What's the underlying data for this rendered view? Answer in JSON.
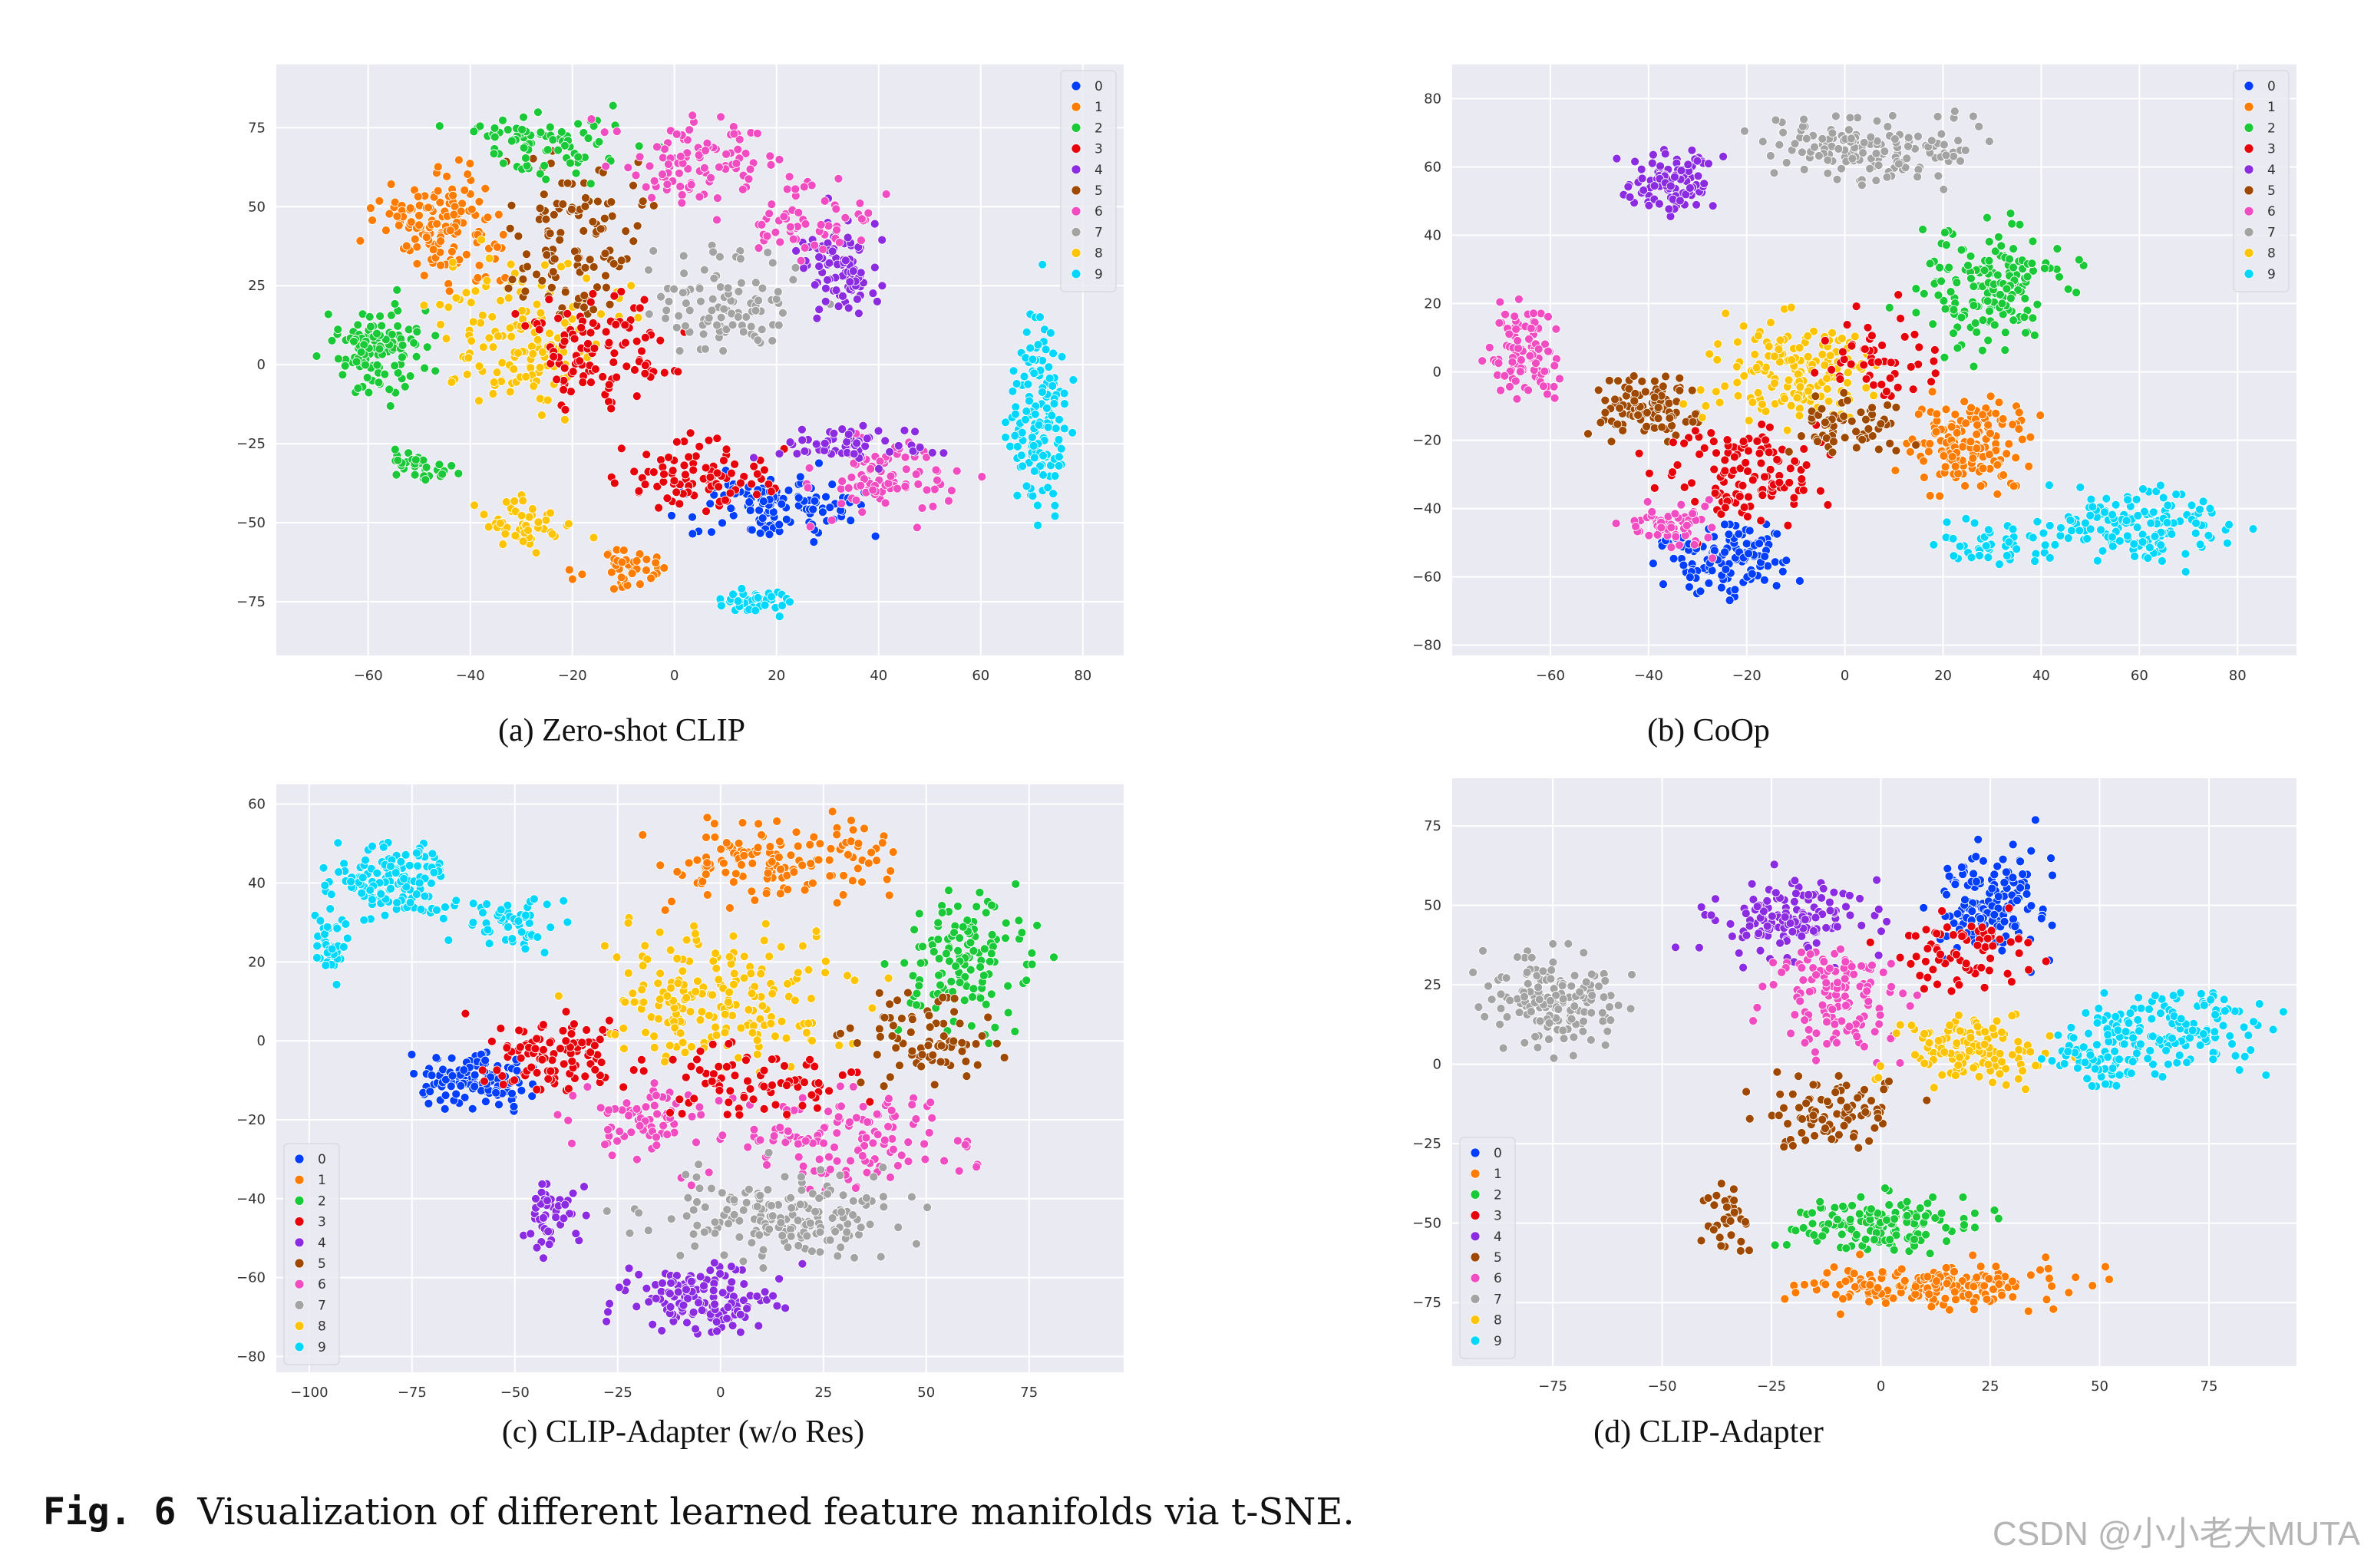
{
  "figure": {
    "label": "Fig. 6",
    "caption": "Visualization of different learned feature manifolds via t-SNE."
  },
  "watermark": "CSDN @小小老大MUTA",
  "colors": {
    "0": "#023eff",
    "1": "#ff7c00",
    "2": "#1ac938",
    "3": "#e8000b",
    "4": "#8b2be2",
    "5": "#9f4800",
    "6": "#f14cc1",
    "7": "#a3a3a3",
    "8": "#ffc400",
    "9": "#00d7ff"
  },
  "chart_data": [
    {
      "type": "scatter",
      "caption": "(a) Zero-shot CLIP",
      "legend_labels": [
        "0",
        "1",
        "2",
        "3",
        "4",
        "5",
        "6",
        "7",
        "8",
        "9"
      ],
      "legend_position": "top-right",
      "xlim": [
        -78,
        88
      ],
      "ylim": [
        -92,
        95
      ],
      "xticks": [
        -60,
        -40,
        -20,
        0,
        20,
        40,
        60,
        80
      ],
      "yticks": [
        -75,
        -50,
        -25,
        0,
        25,
        50,
        75
      ],
      "grid": true,
      "clusters": [
        {
          "label": 2,
          "cx": -58,
          "cy": 5,
          "sx": 8,
          "sy": 12,
          "n": 120
        },
        {
          "label": 1,
          "cx": -45,
          "cy": 45,
          "sx": 10,
          "sy": 15,
          "n": 140
        },
        {
          "label": 8,
          "cx": -30,
          "cy": 10,
          "sx": 14,
          "sy": 20,
          "n": 150
        },
        {
          "label": 5,
          "cx": -20,
          "cy": 40,
          "sx": 12,
          "sy": 20,
          "n": 120
        },
        {
          "label": 2,
          "cx": -25,
          "cy": 70,
          "sx": 15,
          "sy": 10,
          "n": 80
        },
        {
          "label": 3,
          "cx": -15,
          "cy": 5,
          "sx": 12,
          "sy": 15,
          "n": 110
        },
        {
          "label": 6,
          "cx": 5,
          "cy": 65,
          "sx": 12,
          "sy": 12,
          "n": 100
        },
        {
          "label": 7,
          "cx": 10,
          "cy": 20,
          "sx": 12,
          "sy": 15,
          "n": 100
        },
        {
          "label": 4,
          "cx": 33,
          "cy": 30,
          "sx": 6,
          "sy": 14,
          "n": 90
        },
        {
          "label": 6,
          "cx": 25,
          "cy": 45,
          "sx": 10,
          "sy": 10,
          "n": 60
        },
        {
          "label": 0,
          "cx": 20,
          "cy": -45,
          "sx": 14,
          "sy": 8,
          "n": 120
        },
        {
          "label": 3,
          "cx": 5,
          "cy": -35,
          "sx": 12,
          "sy": 10,
          "n": 90
        },
        {
          "label": 6,
          "cx": 40,
          "cy": -35,
          "sx": 12,
          "sy": 10,
          "n": 90
        },
        {
          "label": 4,
          "cx": 35,
          "cy": -25,
          "sx": 12,
          "sy": 6,
          "n": 60
        },
        {
          "label": 9,
          "cx": 72,
          "cy": -15,
          "sx": 5,
          "sy": 25,
          "n": 140
        },
        {
          "label": 9,
          "cx": 15,
          "cy": -75,
          "sx": 6,
          "sy": 4,
          "n": 40
        },
        {
          "label": 1,
          "cx": -10,
          "cy": -65,
          "sx": 8,
          "sy": 6,
          "n": 40
        },
        {
          "label": 2,
          "cx": -50,
          "cy": -32,
          "sx": 6,
          "sy": 4,
          "n": 35
        },
        {
          "label": 8,
          "cx": -30,
          "cy": -50,
          "sx": 8,
          "sy": 6,
          "n": 50
        }
      ]
    },
    {
      "type": "scatter",
      "caption": "(b) CoOp",
      "legend_labels": [
        "0",
        "1",
        "2",
        "3",
        "4",
        "5",
        "6",
        "7",
        "8",
        "9"
      ],
      "legend_position": "top-right",
      "xlim": [
        -80,
        92
      ],
      "ylim": [
        -83,
        90
      ],
      "xticks": [
        -60,
        -40,
        -20,
        0,
        20,
        40,
        60,
        80
      ],
      "yticks": [
        -80,
        -60,
        -40,
        -20,
        0,
        20,
        40,
        60,
        80
      ],
      "grid": true,
      "clusters": [
        {
          "label": 4,
          "cx": -35,
          "cy": 55,
          "sx": 8,
          "sy": 8,
          "n": 100
        },
        {
          "label": 7,
          "cx": 5,
          "cy": 65,
          "sx": 18,
          "sy": 8,
          "n": 150
        },
        {
          "label": 2,
          "cx": 30,
          "cy": 25,
          "sx": 12,
          "sy": 15,
          "n": 160
        },
        {
          "label": 6,
          "cx": -65,
          "cy": 5,
          "sx": 6,
          "sy": 10,
          "n": 100
        },
        {
          "label": 5,
          "cx": -40,
          "cy": -10,
          "sx": 8,
          "sy": 8,
          "n": 100
        },
        {
          "label": 8,
          "cx": -10,
          "cy": 0,
          "sx": 15,
          "sy": 12,
          "n": 160
        },
        {
          "label": 1,
          "cx": 25,
          "cy": -20,
          "sx": 10,
          "sy": 12,
          "n": 150
        },
        {
          "label": 0,
          "cx": -25,
          "cy": -55,
          "sx": 10,
          "sy": 8,
          "n": 130
        },
        {
          "label": 3,
          "cx": -20,
          "cy": -30,
          "sx": 14,
          "sy": 12,
          "n": 120
        },
        {
          "label": 6,
          "cx": -35,
          "cy": -45,
          "sx": 8,
          "sy": 6,
          "n": 60
        },
        {
          "label": 9,
          "cx": 60,
          "cy": -45,
          "sx": 15,
          "sy": 8,
          "n": 150
        },
        {
          "label": 9,
          "cx": 30,
          "cy": -50,
          "sx": 10,
          "sy": 5,
          "n": 50
        },
        {
          "label": 5,
          "cx": 0,
          "cy": -15,
          "sx": 10,
          "sy": 8,
          "n": 60
        },
        {
          "label": 3,
          "cx": 5,
          "cy": 5,
          "sx": 10,
          "sy": 10,
          "n": 50
        }
      ]
    },
    {
      "type": "scatter",
      "caption": "(c) CLIP-Adapter (w/o Res)",
      "legend_labels": [
        "0",
        "1",
        "2",
        "3",
        "4",
        "5",
        "6",
        "7",
        "8",
        "9"
      ],
      "legend_position": "bottom-left",
      "xlim": [
        -108,
        98
      ],
      "ylim": [
        -84,
        65
      ],
      "xticks": [
        -100,
        -75,
        -50,
        -25,
        0,
        25,
        50,
        75
      ],
      "yticks": [
        -80,
        -60,
        -40,
        -20,
        0,
        20,
        40,
        60
      ],
      "grid": true,
      "clusters": [
        {
          "label": 9,
          "cx": -80,
          "cy": 40,
          "sx": 12,
          "sy": 8,
          "n": 140
        },
        {
          "label": 9,
          "cx": -95,
          "cy": 25,
          "sx": 3,
          "sy": 8,
          "n": 40
        },
        {
          "label": 9,
          "cx": -50,
          "cy": 30,
          "sx": 10,
          "sy": 5,
          "n": 60
        },
        {
          "label": 0,
          "cx": -60,
          "cy": -10,
          "sx": 12,
          "sy": 6,
          "n": 120
        },
        {
          "label": 3,
          "cx": -40,
          "cy": -5,
          "sx": 14,
          "sy": 8,
          "n": 110
        },
        {
          "label": 1,
          "cx": 15,
          "cy": 45,
          "sx": 25,
          "sy": 8,
          "n": 140
        },
        {
          "label": 2,
          "cx": 60,
          "cy": 20,
          "sx": 15,
          "sy": 15,
          "n": 130
        },
        {
          "label": 8,
          "cx": 0,
          "cy": 10,
          "sx": 25,
          "sy": 15,
          "n": 200
        },
        {
          "label": 5,
          "cx": 50,
          "cy": 0,
          "sx": 15,
          "sy": 10,
          "n": 80
        },
        {
          "label": 6,
          "cx": 30,
          "cy": -25,
          "sx": 25,
          "sy": 10,
          "n": 140
        },
        {
          "label": 7,
          "cx": 15,
          "cy": -45,
          "sx": 25,
          "sy": 10,
          "n": 170
        },
        {
          "label": 4,
          "cx": -5,
          "cy": -65,
          "sx": 15,
          "sy": 7,
          "n": 140
        },
        {
          "label": 4,
          "cx": -40,
          "cy": -45,
          "sx": 6,
          "sy": 8,
          "n": 50
        },
        {
          "label": 6,
          "cx": -20,
          "cy": -20,
          "sx": 15,
          "sy": 8,
          "n": 70
        },
        {
          "label": 3,
          "cx": 10,
          "cy": -10,
          "sx": 20,
          "sy": 8,
          "n": 80
        }
      ]
    },
    {
      "type": "scatter",
      "caption": "(d) CLIP-Adapter",
      "legend_labels": [
        "0",
        "1",
        "2",
        "3",
        "4",
        "5",
        "6",
        "7",
        "8",
        "9"
      ],
      "legend_position": "bottom-left",
      "xlim": [
        -98,
        95
      ],
      "ylim": [
        -95,
        90
      ],
      "xticks": [
        -75,
        -50,
        -25,
        0,
        25,
        50,
        75
      ],
      "yticks": [
        -75,
        -50,
        -25,
        0,
        25,
        50,
        75
      ],
      "grid": true,
      "clusters": [
        {
          "label": 7,
          "cx": -75,
          "cy": 20,
          "sx": 12,
          "sy": 12,
          "n": 160
        },
        {
          "label": 4,
          "cx": -20,
          "cy": 45,
          "sx": 15,
          "sy": 10,
          "n": 140
        },
        {
          "label": 0,
          "cx": 25,
          "cy": 50,
          "sx": 10,
          "sy": 14,
          "n": 150
        },
        {
          "label": 3,
          "cx": 20,
          "cy": 35,
          "sx": 14,
          "sy": 10,
          "n": 70
        },
        {
          "label": 6,
          "cx": -10,
          "cy": 20,
          "sx": 12,
          "sy": 14,
          "n": 130
        },
        {
          "label": 5,
          "cx": -10,
          "cy": -15,
          "sx": 15,
          "sy": 10,
          "n": 90
        },
        {
          "label": 8,
          "cx": 20,
          "cy": 5,
          "sx": 14,
          "sy": 10,
          "n": 130
        },
        {
          "label": 2,
          "cx": 0,
          "cy": -50,
          "sx": 18,
          "sy": 8,
          "n": 140
        },
        {
          "label": 1,
          "cx": 15,
          "cy": -70,
          "sx": 25,
          "sy": 6,
          "n": 170
        },
        {
          "label": 9,
          "cx": 65,
          "cy": 10,
          "sx": 18,
          "sy": 12,
          "n": 150
        },
        {
          "label": 9,
          "cx": 48,
          "cy": 0,
          "sx": 10,
          "sy": 8,
          "n": 50
        },
        {
          "label": 5,
          "cx": -35,
          "cy": -50,
          "sx": 5,
          "sy": 8,
          "n": 35
        }
      ]
    }
  ]
}
